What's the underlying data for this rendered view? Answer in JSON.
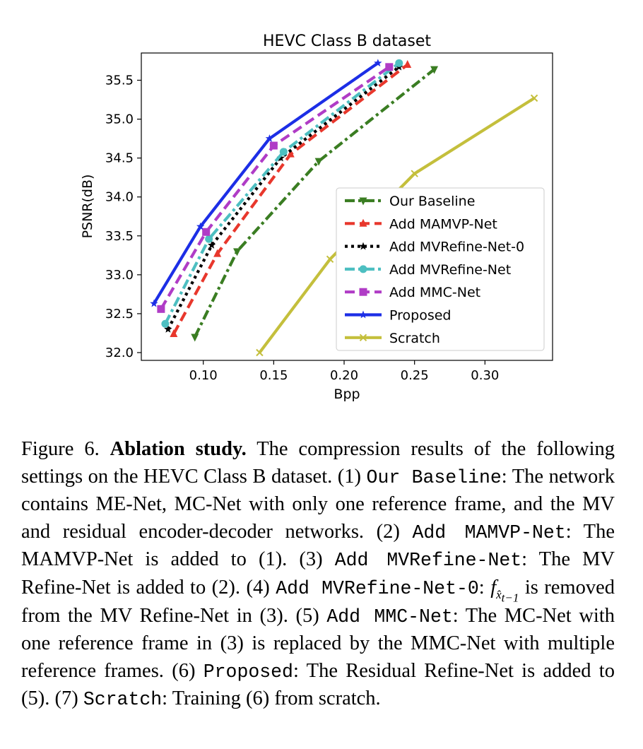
{
  "chart_data": {
    "type": "line",
    "title": "HEVC Class B dataset",
    "xlabel": "Bpp",
    "ylabel": "PSNR(dB)",
    "xlim": [
      0.056,
      0.348
    ],
    "ylim": [
      31.9,
      35.85
    ],
    "xticks": [
      0.1,
      0.15,
      0.2,
      0.25,
      0.3
    ],
    "xtick_labels": [
      "0.10",
      "0.15",
      "0.20",
      "0.25",
      "0.30"
    ],
    "yticks": [
      32.0,
      32.5,
      33.0,
      33.5,
      34.0,
      34.5,
      35.0,
      35.5
    ],
    "ytick_labels": [
      "32.0",
      "32.5",
      "33.0",
      "33.5",
      "34.0",
      "34.5",
      "35.0",
      "35.5"
    ],
    "grid": false,
    "legend_position": "lower-right",
    "series": [
      {
        "name": "Our Baseline",
        "color": "#3a7d22",
        "dash": "dashdot",
        "marker": "triangle-down",
        "x": [
          0.094,
          0.124,
          0.182,
          0.264
        ],
        "y": [
          32.2,
          33.3,
          34.46,
          35.64
        ]
      },
      {
        "name": "Add MAMVP-Net",
        "color": "#e8372c",
        "dash": "dashed",
        "marker": "triangle-up",
        "x": [
          0.079,
          0.11,
          0.162,
          0.245
        ],
        "y": [
          32.24,
          33.27,
          34.55,
          35.7
        ]
      },
      {
        "name": "Add MVRefine-Net-0",
        "color": "#000000",
        "dash": "dotted",
        "marker": "star",
        "x": [
          0.075,
          0.106,
          0.155,
          0.239
        ],
        "y": [
          32.3,
          33.38,
          34.5,
          35.67
        ]
      },
      {
        "name": "Add MVRefine-Net",
        "color": "#4dbfc1",
        "dash": "dashdot",
        "marker": "circle",
        "x": [
          0.073,
          0.104,
          0.157,
          0.239
        ],
        "y": [
          32.37,
          33.46,
          34.58,
          35.72
        ]
      },
      {
        "name": "Add MMC-Net",
        "color": "#b03cc6",
        "dash": "dashed",
        "marker": "square",
        "x": [
          0.07,
          0.102,
          0.15,
          0.232
        ],
        "y": [
          32.56,
          33.55,
          34.66,
          35.67
        ]
      },
      {
        "name": "Proposed",
        "color": "#1c2ee6",
        "dash": "solid",
        "marker": "star",
        "x": [
          0.065,
          0.098,
          0.147,
          0.224
        ],
        "y": [
          32.63,
          33.62,
          34.75,
          35.72
        ]
      },
      {
        "name": "Scratch",
        "color": "#c4bf3c",
        "dash": "solid",
        "marker": "x",
        "x": [
          0.14,
          0.19,
          0.25,
          0.335
        ],
        "y": [
          32.0,
          33.2,
          34.3,
          35.27
        ]
      }
    ]
  },
  "caption": {
    "figure_label": "Figure 6.",
    "bold_title": "Ablation study.",
    "intro": " The compression results of the following settings on the HEVC Class B dataset. (1) ",
    "term1": "Our Baseline",
    "desc1": ": The network contains ME-Net, MC-Net with only one reference frame, and the MV and residual encoder-decoder networks. (2) ",
    "term2": "Add MAMVP-Net",
    "desc2": ": The MAMVP-Net is added to (1). (3) ",
    "term3": "Add MVRefine-Net",
    "desc3": ": The MV Refine-Net is added to (2). (4) ",
    "term4": "Add MVRefine-Net-0",
    "desc4_pre": ": ",
    "math_f": "f",
    "math_sub": "x̂",
    "math_subsub": "t−1",
    "desc4_post": " is removed from the MV Refine-Net in (3). (5) ",
    "term5": "Add MMC-Net",
    "desc5": ": The MC-Net with one reference frame in (3) is replaced by the MMC-Net with multiple reference frames. (6) ",
    "term6": "Proposed",
    "desc6": ": The Residual Refine-Net is added to (5). (7) ",
    "term7": "Scratch",
    "desc7": ": Training (6) from scratch."
  }
}
